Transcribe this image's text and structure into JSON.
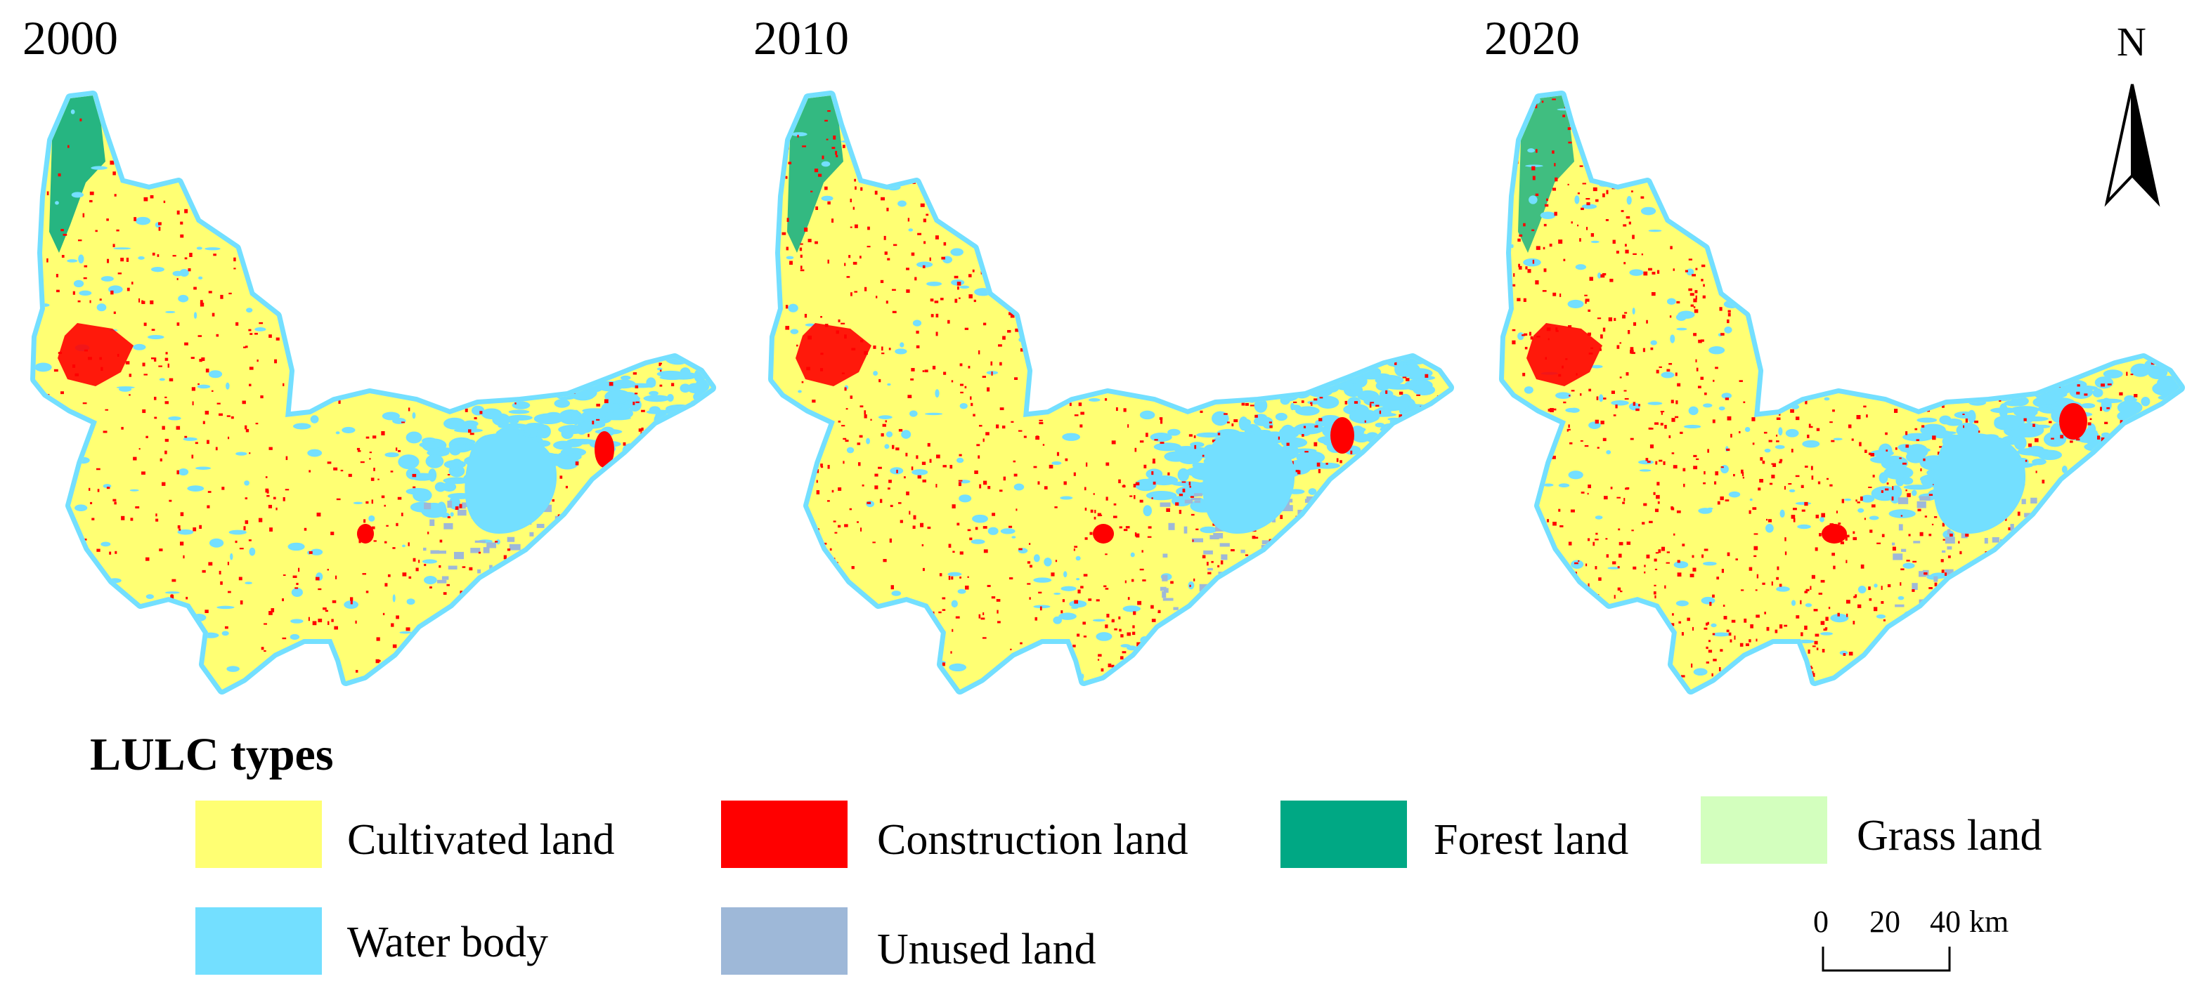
{
  "years": [
    "2000",
    "2010",
    "2020"
  ],
  "north_label": "N",
  "legend": {
    "title": "LULC types",
    "items": [
      {
        "label": "Cultivated land",
        "color": "#ffff73"
      },
      {
        "label": "Construction land",
        "color": "#ff0000"
      },
      {
        "label": "Forest land",
        "color": "#00a884"
      },
      {
        "label": "Grass land",
        "color": "#d3ffbe"
      },
      {
        "label": "Water body",
        "color": "#73dfff"
      },
      {
        "label": "Unused land",
        "color": "#9eb8d8"
      }
    ]
  },
  "scale_bar": {
    "ticks": [
      "0",
      "20",
      "40"
    ],
    "unit": "km"
  }
}
